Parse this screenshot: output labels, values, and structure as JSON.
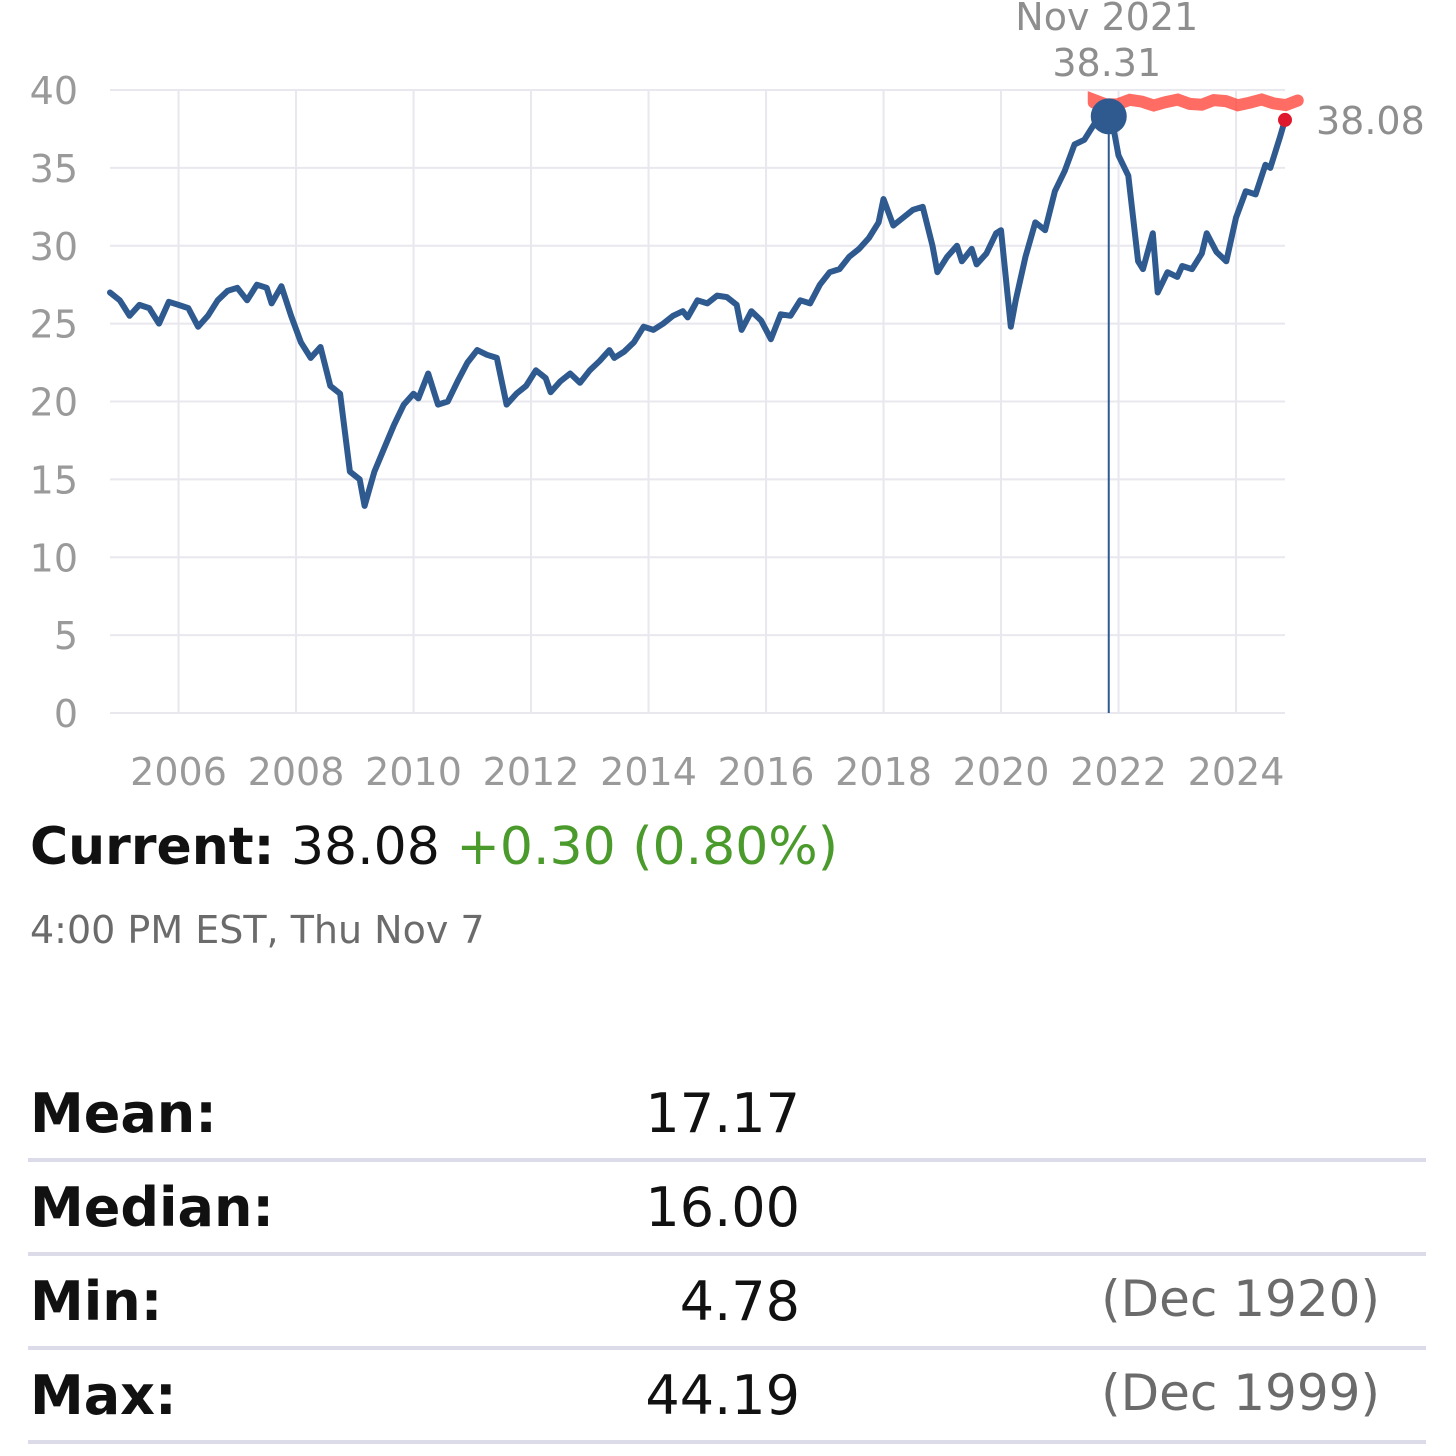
{
  "chart_data": {
    "type": "line",
    "y_ticks": [
      "0",
      "5",
      "10",
      "15",
      "20",
      "25",
      "30",
      "35",
      "40"
    ],
    "x_ticks": [
      "2006",
      "2008",
      "2010",
      "2012",
      "2014",
      "2016",
      "2018",
      "2020",
      "2022",
      "2024"
    ],
    "ylim": [
      0,
      40
    ],
    "xlim": [
      "2004-11",
      "2024-11"
    ],
    "grid": true,
    "line_color": "#2f5a8f",
    "series": [
      {
        "points": [
          [
            "2004-11",
            27.0
          ],
          [
            "2005-01",
            26.5
          ],
          [
            "2005-03",
            25.5
          ],
          [
            "2005-05",
            26.2
          ],
          [
            "2005-07",
            26.0
          ],
          [
            "2005-09",
            25.0
          ],
          [
            "2005-11",
            26.4
          ],
          [
            "2006-01",
            26.2
          ],
          [
            "2006-03",
            26.0
          ],
          [
            "2006-05",
            24.8
          ],
          [
            "2006-07",
            25.5
          ],
          [
            "2006-09",
            26.5
          ],
          [
            "2006-11",
            27.1
          ],
          [
            "2007-01",
            27.3
          ],
          [
            "2007-03",
            26.5
          ],
          [
            "2007-05",
            27.5
          ],
          [
            "2007-07",
            27.3
          ],
          [
            "2007-08",
            26.3
          ],
          [
            "2007-10",
            27.4
          ],
          [
            "2007-12",
            25.5
          ],
          [
            "2008-02",
            23.8
          ],
          [
            "2008-04",
            22.8
          ],
          [
            "2008-06",
            23.5
          ],
          [
            "2008-08",
            21.0
          ],
          [
            "2008-10",
            20.5
          ],
          [
            "2008-12",
            15.5
          ],
          [
            "2009-02",
            15.0
          ],
          [
            "2009-03",
            13.3
          ],
          [
            "2009-05",
            15.5
          ],
          [
            "2009-07",
            17.0
          ],
          [
            "2009-09",
            18.5
          ],
          [
            "2009-11",
            19.8
          ],
          [
            "2010-01",
            20.5
          ],
          [
            "2010-02",
            20.2
          ],
          [
            "2010-04",
            21.8
          ],
          [
            "2010-06",
            19.8
          ],
          [
            "2010-08",
            20.0
          ],
          [
            "2010-10",
            21.3
          ],
          [
            "2010-12",
            22.5
          ],
          [
            "2011-02",
            23.3
          ],
          [
            "2011-04",
            23.0
          ],
          [
            "2011-06",
            22.8
          ],
          [
            "2011-08",
            19.8
          ],
          [
            "2011-10",
            20.5
          ],
          [
            "2011-12",
            21.0
          ],
          [
            "2012-02",
            22.0
          ],
          [
            "2012-04",
            21.5
          ],
          [
            "2012-05",
            20.6
          ],
          [
            "2012-07",
            21.3
          ],
          [
            "2012-09",
            21.8
          ],
          [
            "2012-11",
            21.2
          ],
          [
            "2013-01",
            22.0
          ],
          [
            "2013-03",
            22.6
          ],
          [
            "2013-05",
            23.3
          ],
          [
            "2013-06",
            22.8
          ],
          [
            "2013-08",
            23.2
          ],
          [
            "2013-10",
            23.8
          ],
          [
            "2013-12",
            24.8
          ],
          [
            "2014-02",
            24.6
          ],
          [
            "2014-04",
            25.0
          ],
          [
            "2014-06",
            25.5
          ],
          [
            "2014-08",
            25.8
          ],
          [
            "2014-09",
            25.4
          ],
          [
            "2014-11",
            26.5
          ],
          [
            "2015-01",
            26.3
          ],
          [
            "2015-03",
            26.8
          ],
          [
            "2015-05",
            26.7
          ],
          [
            "2015-07",
            26.2
          ],
          [
            "2015-08",
            24.6
          ],
          [
            "2015-10",
            25.8
          ],
          [
            "2015-12",
            25.2
          ],
          [
            "2016-02",
            24.0
          ],
          [
            "2016-04",
            25.6
          ],
          [
            "2016-06",
            25.5
          ],
          [
            "2016-08",
            26.5
          ],
          [
            "2016-10",
            26.3
          ],
          [
            "2016-12",
            27.5
          ],
          [
            "2017-02",
            28.3
          ],
          [
            "2017-04",
            28.5
          ],
          [
            "2017-06",
            29.3
          ],
          [
            "2017-08",
            29.8
          ],
          [
            "2017-10",
            30.5
          ],
          [
            "2017-12",
            31.5
          ],
          [
            "2018-01",
            33.0
          ],
          [
            "2018-03",
            31.3
          ],
          [
            "2018-05",
            31.8
          ],
          [
            "2018-07",
            32.3
          ],
          [
            "2018-09",
            32.5
          ],
          [
            "2018-11",
            30.0
          ],
          [
            "2018-12",
            28.3
          ],
          [
            "2019-02",
            29.3
          ],
          [
            "2019-04",
            30.0
          ],
          [
            "2019-05",
            29.0
          ],
          [
            "2019-07",
            29.8
          ],
          [
            "2019-08",
            28.8
          ],
          [
            "2019-10",
            29.5
          ],
          [
            "2019-12",
            30.8
          ],
          [
            "2020-01",
            31.0
          ],
          [
            "2020-03",
            24.8
          ],
          [
            "2020-04",
            26.5
          ],
          [
            "2020-06",
            29.3
          ],
          [
            "2020-08",
            31.5
          ],
          [
            "2020-10",
            31.0
          ],
          [
            "2020-12",
            33.5
          ],
          [
            "2021-02",
            34.8
          ],
          [
            "2021-04",
            36.5
          ],
          [
            "2021-06",
            36.8
          ],
          [
            "2021-08",
            37.8
          ],
          [
            "2021-11",
            38.31
          ],
          [
            "2021-12",
            37.5
          ],
          [
            "2022-01",
            35.8
          ],
          [
            "2022-03",
            34.5
          ],
          [
            "2022-05",
            29.0
          ],
          [
            "2022-06",
            28.5
          ],
          [
            "2022-08",
            30.8
          ],
          [
            "2022-09",
            27.0
          ],
          [
            "2022-11",
            28.3
          ],
          [
            "2023-01",
            28.0
          ],
          [
            "2023-02",
            28.7
          ],
          [
            "2023-04",
            28.5
          ],
          [
            "2023-06",
            29.5
          ],
          [
            "2023-07",
            30.8
          ],
          [
            "2023-09",
            29.6
          ],
          [
            "2023-11",
            29.0
          ],
          [
            "2024-01",
            31.8
          ],
          [
            "2024-03",
            33.5
          ],
          [
            "2024-05",
            33.3
          ],
          [
            "2024-07",
            35.2
          ],
          [
            "2024-08",
            35.0
          ],
          [
            "2024-10",
            37.0
          ],
          [
            "2024-11",
            38.08
          ]
        ]
      }
    ],
    "annotations": {
      "peak": {
        "date": "2021-11",
        "value": 38.31,
        "label_date": "Nov 2021",
        "label_value": "38.31"
      },
      "current": {
        "date": "2024-11",
        "value": 38.08,
        "label": "38.08"
      }
    },
    "peak_marker_color": "#2f5a8f",
    "current_marker_color": "#e0182d",
    "highlight_band_color": "#ff3b30"
  },
  "current": {
    "label": "Current:",
    "value": "38.08",
    "change": "+0.30 (0.80%)",
    "timestamp": "4:00 PM EST, Thu Nov 7"
  },
  "stats": [
    {
      "label": "Mean:",
      "value": "17.17",
      "date": ""
    },
    {
      "label": "Median:",
      "value": "16.00",
      "date": ""
    },
    {
      "label": "Min:",
      "value": "4.78",
      "date": "(Dec 1920)"
    },
    {
      "label": "Max:",
      "value": "44.19",
      "date": "(Dec 1999)"
    }
  ],
  "colors": {
    "positive": "#4a9a2c",
    "grid": "#e8e8ee",
    "divider": "#dcdbe9"
  }
}
